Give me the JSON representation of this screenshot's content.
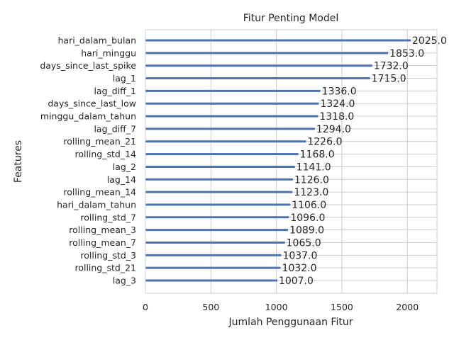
{
  "chart_data": {
    "type": "bar",
    "orientation": "horizontal",
    "title": "Fitur Penting Model",
    "xlabel": "Jumlah Penggunaan Fitur",
    "ylabel": "Features",
    "xlim": [
      0,
      2226
    ],
    "xticks": [
      0,
      500,
      1000,
      1500,
      2000
    ],
    "grid": true,
    "value_format": "one-decimal",
    "bar_color": "#4c72b0",
    "categories": [
      "hari_dalam_bulan",
      "hari_minggu",
      "days_since_last_spike",
      "lag_1",
      "lag_diff_1",
      "days_since_last_low",
      "minggu_dalam_tahun",
      "lag_diff_7",
      "rolling_mean_21",
      "rolling_std_14",
      "lag_2",
      "lag_14",
      "rolling_mean_14",
      "hari_dalam_tahun",
      "rolling_std_7",
      "rolling_mean_3",
      "rolling_mean_7",
      "rolling_std_3",
      "rolling_std_21",
      "lag_3"
    ],
    "values": [
      2025,
      1853,
      1732,
      1715,
      1336,
      1324,
      1318,
      1294,
      1226,
      1168,
      1141,
      1126,
      1123,
      1106,
      1096,
      1089,
      1065,
      1037,
      1032,
      1007
    ]
  }
}
